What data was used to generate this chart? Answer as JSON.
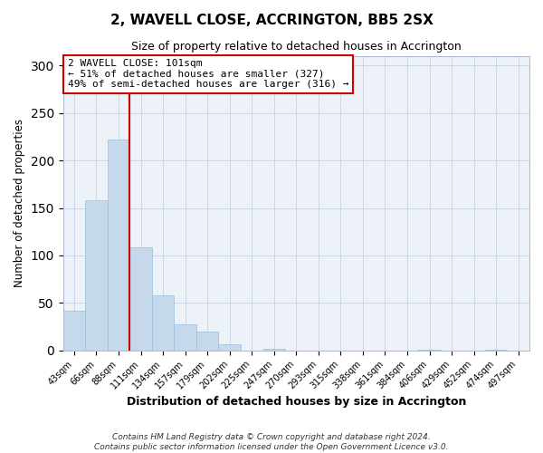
{
  "title": "2, WAVELL CLOSE, ACCRINGTON, BB5 2SX",
  "subtitle": "Size of property relative to detached houses in Accrington",
  "xlabel": "Distribution of detached houses by size in Accrington",
  "ylabel": "Number of detached properties",
  "bar_color": "#c5d8ec",
  "bar_edge_color": "#9bbcd8",
  "background_color": "#edf2f9",
  "grid_color": "#ccd6e8",
  "categories": [
    "43sqm",
    "66sqm",
    "88sqm",
    "111sqm",
    "134sqm",
    "157sqm",
    "179sqm",
    "202sqm",
    "225sqm",
    "247sqm",
    "270sqm",
    "293sqm",
    "315sqm",
    "338sqm",
    "361sqm",
    "384sqm",
    "406sqm",
    "429sqm",
    "452sqm",
    "474sqm",
    "497sqm"
  ],
  "values": [
    42,
    158,
    222,
    109,
    58,
    27,
    20,
    6,
    0,
    2,
    0,
    0,
    0,
    0,
    0,
    0,
    1,
    0,
    0,
    1,
    0
  ],
  "ylim": [
    0,
    310
  ],
  "yticks": [
    0,
    50,
    100,
    150,
    200,
    250,
    300
  ],
  "property_line_color": "#cc0000",
  "property_line_bar_index": 3,
  "annotation_box_color": "#cc0000",
  "annotation_title": "2 WAVELL CLOSE: 101sqm",
  "annotation_line1": "← 51% of detached houses are smaller (327)",
  "annotation_line2": "49% of semi-detached houses are larger (316) →",
  "footer_line1": "Contains HM Land Registry data © Crown copyright and database right 2024.",
  "footer_line2": "Contains public sector information licensed under the Open Government Licence v3.0."
}
